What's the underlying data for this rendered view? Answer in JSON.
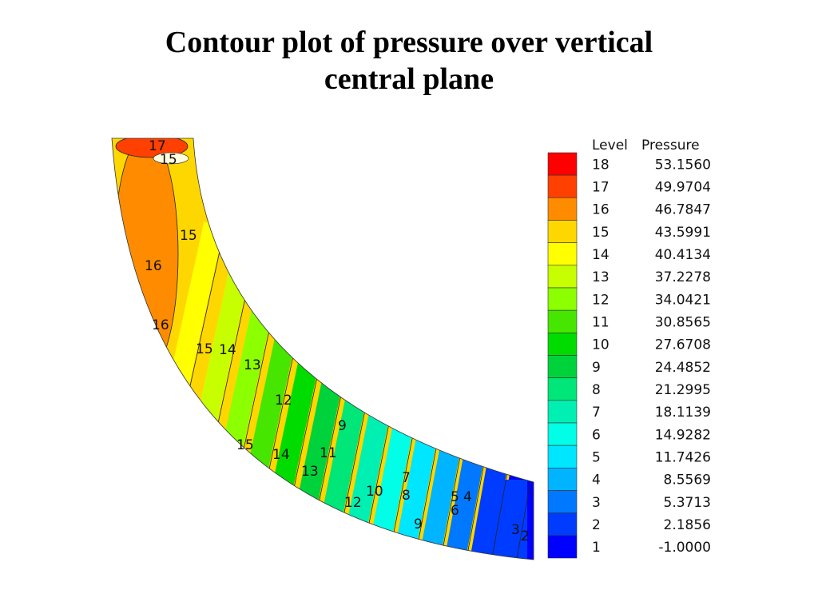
{
  "title": {
    "line1": "Contour plot of pressure over vertical",
    "line2": "central plane"
  },
  "chart_data": {
    "type": "heatmap",
    "plot_kind": "contour",
    "legend": {
      "header_level": "Level",
      "header_value": "Pressure",
      "placement": "right",
      "entries": [
        {
          "level": "18",
          "value": "53.1560",
          "color": "#ff0000"
        },
        {
          "level": "17",
          "value": "49.9704",
          "color": "#ff4000"
        },
        {
          "level": "16",
          "value": "46.7847",
          "color": "#ff8c00"
        },
        {
          "level": "15",
          "value": "43.5991",
          "color": "#ffd700"
        },
        {
          "level": "14",
          "value": "40.4134",
          "color": "#ffff00"
        },
        {
          "level": "13",
          "value": "37.2278",
          "color": "#c8ff00"
        },
        {
          "level": "12",
          "value": "34.0421",
          "color": "#8cff00"
        },
        {
          "level": "11",
          "value": "30.8565",
          "color": "#46e600"
        },
        {
          "level": "10",
          "value": "27.6708",
          "color": "#00dc00"
        },
        {
          "level": "9",
          "value": "24.4852",
          "color": "#00d23c"
        },
        {
          "level": "8",
          "value": "21.2995",
          "color": "#00e678"
        },
        {
          "level": "7",
          "value": "18.1139",
          "color": "#00f0b4"
        },
        {
          "level": "6",
          "value": "14.9282",
          "color": "#00ffe6"
        },
        {
          "level": "5",
          "value": "11.7426",
          "color": "#00e6ff"
        },
        {
          "level": "4",
          "value": "8.5569",
          "color": "#00b4ff"
        },
        {
          "level": "3",
          "value": "5.3713",
          "color": "#0078ff"
        },
        {
          "level": "2",
          "value": "2.1856",
          "color": "#003cff"
        },
        {
          "level": "1",
          "value": "-1.0000",
          "color": "#0000ff"
        }
      ]
    },
    "contour_labels": [
      "17",
      "15",
      "15",
      "16",
      "16",
      "15",
      "14",
      "13",
      "12",
      "9",
      "15",
      "14",
      "13",
      "11",
      "10",
      "12",
      "7",
      "8",
      "9",
      "5",
      "4",
      "6",
      "3",
      "2"
    ],
    "contour_label_values": [
      17,
      15,
      15,
      16,
      16,
      15,
      14,
      13,
      12,
      9,
      15,
      14,
      13,
      11,
      10,
      12,
      7,
      8,
      9,
      5,
      4,
      6,
      3,
      2
    ]
  }
}
